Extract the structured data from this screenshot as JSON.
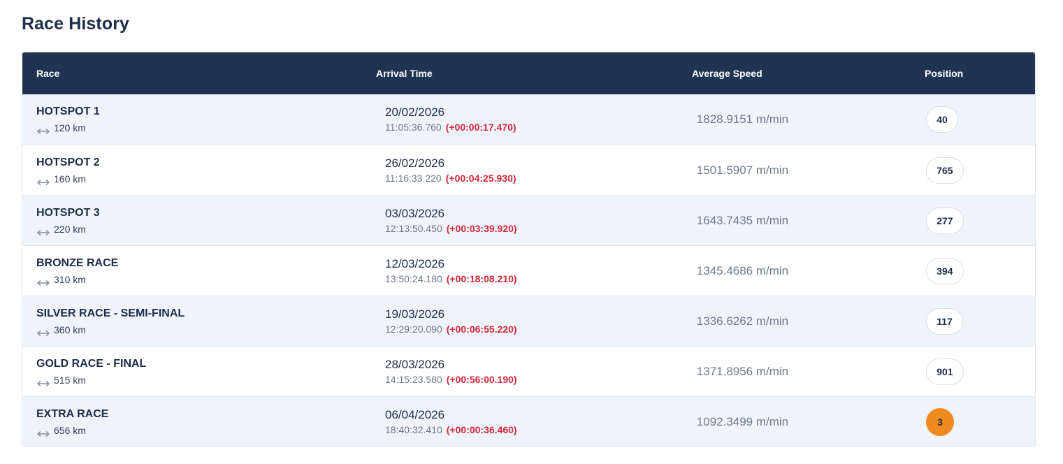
{
  "page": {
    "title": "Race History"
  },
  "table": {
    "headers": {
      "race": "Race",
      "arrival": "Arrival Time",
      "speed": "Average Speed",
      "position": "Position"
    },
    "rows": [
      {
        "race": "HOTSPOT 1",
        "distance": "120 km",
        "date": "20/02/2026",
        "time": "11:05:36.760",
        "delta": "(+00:00:17.470)",
        "speed": "1828.9151 m/min",
        "position": "40",
        "highlight": false
      },
      {
        "race": "HOTSPOT 2",
        "distance": "160 km",
        "date": "26/02/2026",
        "time": "11:16:33.220",
        "delta": "(+00:04:25.930)",
        "speed": "1501.5907 m/min",
        "position": "765",
        "highlight": false
      },
      {
        "race": "HOTSPOT 3",
        "distance": "220 km",
        "date": "03/03/2026",
        "time": "12:13:50.450",
        "delta": "(+00:03:39.920)",
        "speed": "1643.7435 m/min",
        "position": "277",
        "highlight": false
      },
      {
        "race": "BRONZE RACE",
        "distance": "310 km",
        "date": "12/03/2026",
        "time": "13:50:24.180",
        "delta": "(+00:18:08.210)",
        "speed": "1345.4686 m/min",
        "position": "394",
        "highlight": false
      },
      {
        "race": "SILVER RACE - SEMI-FINAL",
        "distance": "360 km",
        "date": "19/03/2026",
        "time": "12:29:20.090",
        "delta": "(+00:06:55.220)",
        "speed": "1336.6262 m/min",
        "position": "117",
        "highlight": false
      },
      {
        "race": "GOLD RACE - FINAL",
        "distance": "515 km",
        "date": "28/03/2026",
        "time": "14:15:23.580",
        "delta": "(+00:56:00.190)",
        "speed": "1371.8956 m/min",
        "position": "901",
        "highlight": false
      },
      {
        "race": "EXTRA RACE",
        "distance": "656 km",
        "date": "06/04/2026",
        "time": "18:40:32.410",
        "delta": "(+00:00:36.460)",
        "speed": "1092.3499 m/min",
        "position": "3",
        "highlight": true
      }
    ]
  },
  "icons": {
    "distance": "double-arrow-horizontal-icon"
  },
  "colors": {
    "header_bg": "#1f3352",
    "row_alt_bg": "#eff4fb",
    "delta_red": "#d4283c",
    "podium_orange": "#ee8a1f"
  }
}
